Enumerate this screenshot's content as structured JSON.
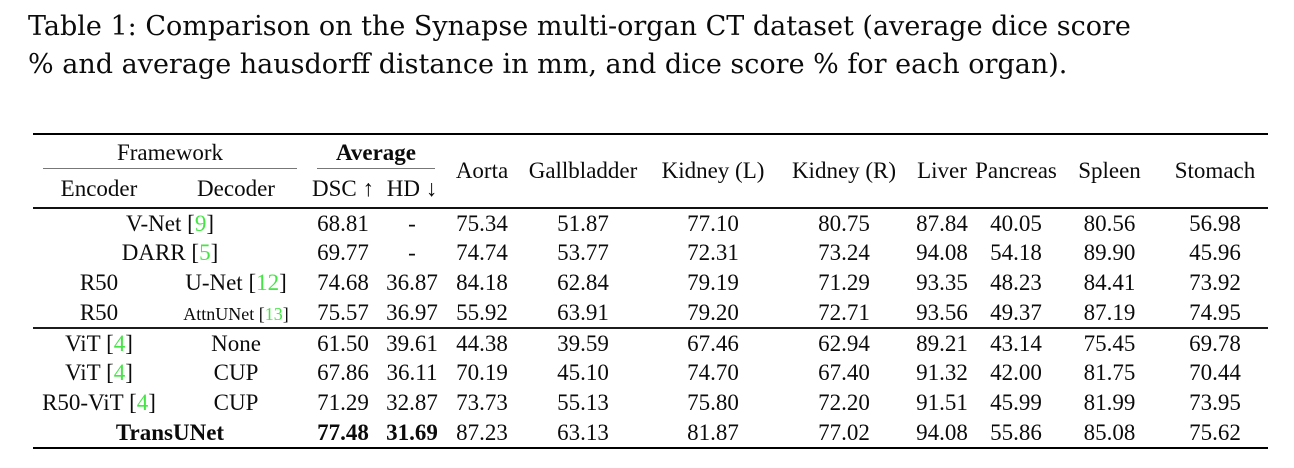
{
  "caption": {
    "line1": "Table 1: Comparison on the Synapse multi-organ CT dataset (average dice score",
    "line2": "% and average hausdorff distance in mm, and dice score % for each organ)."
  },
  "colors": {
    "citation_green": "#44e544"
  },
  "table": {
    "header": {
      "framework": "Framework",
      "average": "Average",
      "encoder": "Encoder",
      "decoder": "Decoder",
      "dsc": "DSC ↑",
      "hd": "HD ↓",
      "organs": [
        "Aorta",
        "Gallbladder",
        "Kidney (L)",
        "Kidney (R)",
        "Liver",
        "Pancreas",
        "Spleen",
        "Stomach"
      ]
    },
    "groups": [
      {
        "rows": [
          {
            "merged": {
              "text": "V-Net",
              "cite": "9"
            },
            "values": [
              "68.81",
              "-",
              "75.34",
              "51.87",
              "77.10",
              "80.75",
              "87.84",
              "40.05",
              "80.56",
              "56.98"
            ]
          },
          {
            "merged": {
              "text": "DARR",
              "cite": "5"
            },
            "values": [
              "69.77",
              "-",
              "74.74",
              "53.77",
              "72.31",
              "73.24",
              "94.08",
              "54.18",
              "89.90",
              "45.96"
            ]
          },
          {
            "encoder": {
              "text": "R50"
            },
            "decoder": {
              "text": "U-Net",
              "cite": "12"
            },
            "values": [
              "74.68",
              "36.87",
              "84.18",
              "62.84",
              "79.19",
              "71.29",
              "93.35",
              "48.23",
              "84.41",
              "73.92"
            ]
          },
          {
            "encoder": {
              "text": "R50"
            },
            "decoder": {
              "text": "AttnUNet",
              "cite": "13",
              "small": true
            },
            "values": [
              "75.57",
              "36.97",
              "55.92",
              "63.91",
              "79.20",
              "72.71",
              "93.56",
              "49.37",
              "87.19",
              "74.95"
            ]
          }
        ]
      },
      {
        "rows": [
          {
            "encoder": {
              "text": "ViT",
              "cite": "4"
            },
            "decoder": {
              "text": "None"
            },
            "values": [
              "61.50",
              "39.61",
              "44.38",
              "39.59",
              "67.46",
              "62.94",
              "89.21",
              "43.14",
              "75.45",
              "69.78"
            ]
          },
          {
            "encoder": {
              "text": "ViT",
              "cite": "4"
            },
            "decoder": {
              "text": "CUP"
            },
            "values": [
              "67.86",
              "36.11",
              "70.19",
              "45.10",
              "74.70",
              "67.40",
              "91.32",
              "42.00",
              "81.75",
              "70.44"
            ]
          },
          {
            "encoder": {
              "text": "R50-ViT",
              "cite": "4"
            },
            "decoder": {
              "text": "CUP"
            },
            "values": [
              "71.29",
              "32.87",
              "73.73",
              "55.13",
              "75.80",
              "72.20",
              "91.51",
              "45.99",
              "81.99",
              "73.95"
            ]
          },
          {
            "merged": {
              "text": "TransUNet",
              "bold": true
            },
            "bold_avg": true,
            "values": [
              "77.48",
              "31.69",
              "87.23",
              "63.13",
              "81.87",
              "77.02",
              "94.08",
              "55.86",
              "85.08",
              "75.62"
            ]
          }
        ]
      }
    ]
  }
}
